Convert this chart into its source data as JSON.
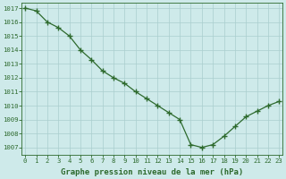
{
  "x": [
    0,
    1,
    2,
    3,
    4,
    5,
    6,
    7,
    8,
    9,
    10,
    11,
    12,
    13,
    14,
    15,
    16,
    17,
    18,
    19,
    20,
    21,
    22,
    23
  ],
  "y": [
    1017.0,
    1016.8,
    1016.0,
    1015.6,
    1015.0,
    1014.0,
    1013.3,
    1012.5,
    1012.0,
    1011.6,
    1011.0,
    1010.5,
    1010.0,
    1009.5,
    1009.0,
    1007.2,
    1007.0,
    1007.2,
    1007.8,
    1008.5,
    1009.2,
    1009.6,
    1010.0,
    1010.3
  ],
  "ylim_min": 1006.5,
  "ylim_max": 1017.4,
  "yticks": [
    1007,
    1008,
    1009,
    1010,
    1011,
    1012,
    1013,
    1014,
    1015,
    1016,
    1017
  ],
  "xticks": [
    0,
    1,
    2,
    3,
    4,
    5,
    6,
    7,
    8,
    9,
    10,
    11,
    12,
    13,
    14,
    15,
    16,
    17,
    18,
    19,
    20,
    21,
    22,
    23
  ],
  "xlabel": "Graphe pression niveau de la mer (hPa)",
  "line_color": "#2d6a2d",
  "marker": "+",
  "marker_size": 4,
  "marker_lw": 1.0,
  "line_width": 0.9,
  "bg_color": "#ceeaea",
  "grid_color": "#aacece",
  "text_color": "#2d6a2d",
  "tick_fontsize": 5.2,
  "xlabel_fontsize": 6.5,
  "xlim_min": -0.3,
  "xlim_max": 23.3
}
